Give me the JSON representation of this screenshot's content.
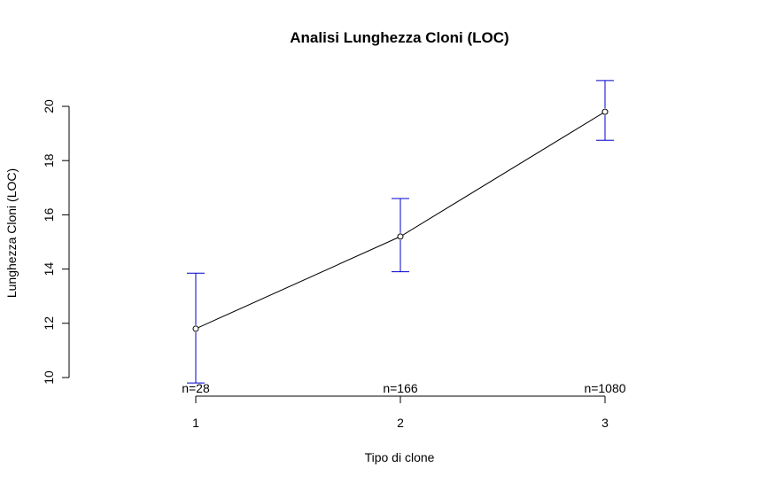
{
  "chart_data": {
    "type": "line",
    "title": "Analisi Lunghezza Cloni (LOC)",
    "xlabel": "Tipo di clone",
    "ylabel": "Lunghezza Cloni (LOC)",
    "x": [
      1,
      2,
      3
    ],
    "x_tick_labels": [
      "1",
      "2",
      "3"
    ],
    "y_ticks": [
      10,
      12,
      14,
      16,
      18,
      20
    ],
    "y_tick_labels": [
      "10",
      "12",
      "14",
      "16",
      "18",
      "20"
    ],
    "ylim": [
      10,
      21
    ],
    "xlim": [
      1,
      3
    ],
    "series": [
      {
        "values": [
          11.8,
          15.2,
          19.8
        ],
        "lower": [
          9.8,
          13.9,
          18.75
        ],
        "upper": [
          13.85,
          16.6,
          20.95
        ]
      }
    ],
    "n_labels": [
      "n=28",
      "n=166",
      "n=1080"
    ],
    "line_color": "#000000",
    "error_bar_color": "#0000cc",
    "grid": false
  }
}
